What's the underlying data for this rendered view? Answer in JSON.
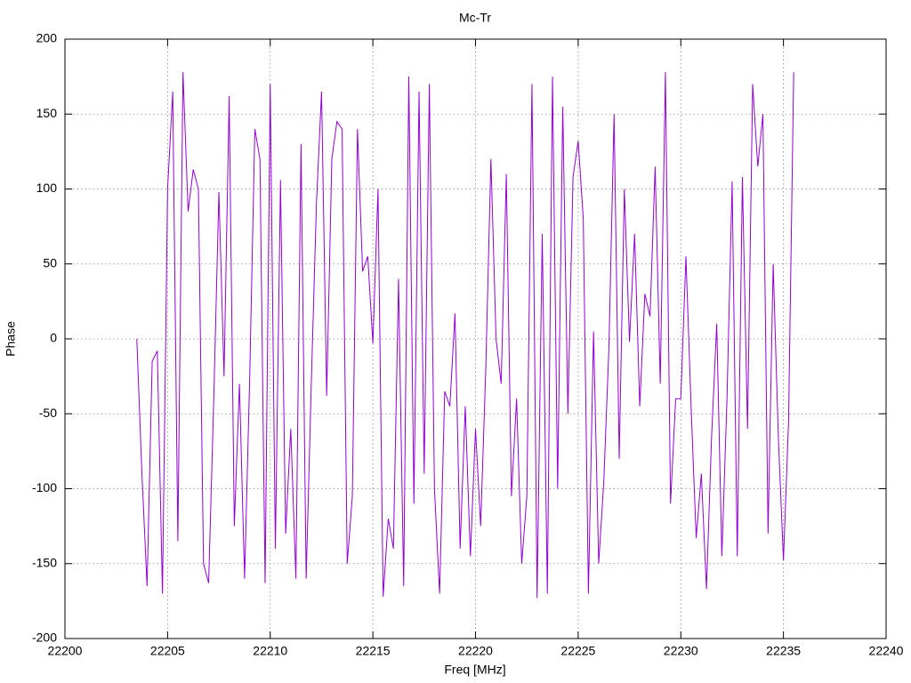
{
  "chart_data": {
    "type": "line",
    "title": "Mc-Tr",
    "x_label": "Freq [MHz]",
    "y_label": "Phase",
    "xlim": [
      22200,
      22240
    ],
    "xticks": [
      22200,
      22205,
      22210,
      22215,
      22220,
      22225,
      22230,
      22235,
      22240
    ],
    "ylim": [
      -200,
      200
    ],
    "yticks": [
      -200,
      -150,
      -100,
      -50,
      0,
      50,
      100,
      150,
      200
    ],
    "grid": true,
    "x": [
      22203.5,
      22203.75,
      22204,
      22204.25,
      22204.5,
      22204.75,
      22205,
      22205.25,
      22205.5,
      22205.75,
      22206,
      22206.25,
      22206.5,
      22206.75,
      22207,
      22207.25,
      22207.5,
      22207.75,
      22208,
      22208.25,
      22208.5,
      22208.75,
      22209,
      22209.25,
      22209.5,
      22209.75,
      22210,
      22210.25,
      22210.5,
      22210.75,
      22211,
      22211.25,
      22211.5,
      22211.75,
      22212,
      22212.25,
      22212.5,
      22212.75,
      22213,
      22213.25,
      22213.5,
      22213.75,
      22214,
      22214.25,
      22214.5,
      22214.75,
      22215,
      22215.25,
      22215.5,
      22215.75,
      22216,
      22216.25,
      22216.5,
      22216.75,
      22217,
      22217.25,
      22217.5,
      22217.75,
      22218,
      22218.25,
      22218.5,
      22218.75,
      22219,
      22219.25,
      22219.5,
      22219.75,
      22220,
      22220.25,
      22220.5,
      22220.75,
      22221,
      22221.25,
      22221.5,
      22221.75,
      22222,
      22222.25,
      22222.5,
      22222.75,
      22223,
      22223.25,
      22223.5,
      22223.75,
      22224,
      22224.25,
      22224.5,
      22224.75,
      22225,
      22225.25,
      22225.5,
      22225.75,
      22226,
      22226.25,
      22226.5,
      22226.75,
      22227,
      22227.25,
      22227.5,
      22227.75,
      22228,
      22228.25,
      22228.5,
      22228.75,
      22229,
      22229.25,
      22229.5,
      22229.75,
      22230,
      22230.25,
      22230.5,
      22230.75,
      22231,
      22231.25,
      22231.5,
      22231.75,
      22232,
      22232.25,
      22232.5,
      22232.75,
      22233,
      22233.25,
      22233.5,
      22233.75,
      22234,
      22234.25,
      22234.5,
      22234.75,
      22235,
      22235.25,
      22235.5
    ],
    "series": [
      {
        "name": "Phase",
        "color": "#9400d3",
        "values": [
          0,
          -90,
          -165,
          -15,
          -8,
          -170,
          100,
          165,
          -135,
          178,
          85,
          113,
          100,
          -150,
          -163,
          -40,
          98,
          -25,
          162,
          -125,
          -30,
          -160,
          -26,
          140,
          120,
          -163,
          170,
          -140,
          106,
          -130,
          -60,
          -160,
          130,
          -160,
          -30,
          90,
          165,
          -38,
          120,
          145,
          140,
          -150,
          -105,
          140,
          45,
          55,
          -3,
          100,
          -172,
          -120,
          -140,
          40,
          -165,
          175,
          -110,
          165,
          -90,
          170,
          -100,
          -170,
          -35,
          -45,
          17,
          -140,
          -45,
          -145,
          -60,
          -125,
          -20,
          120,
          0,
          -30,
          110,
          -105,
          -40,
          -150,
          -105,
          170,
          -173,
          70,
          -170,
          175,
          -100,
          155,
          -50,
          108,
          132,
          80,
          -170,
          5,
          -150,
          -95,
          -5,
          150,
          -80,
          100,
          -2,
          70,
          -45,
          30,
          15,
          115,
          -30,
          178,
          -110,
          -40,
          -40,
          55,
          -45,
          -133,
          -90,
          -167,
          -65,
          10,
          -145,
          -40,
          105,
          -145,
          108,
          -60,
          170,
          115,
          150,
          -130,
          50,
          -65,
          -148,
          -55,
          178
        ]
      }
    ]
  }
}
